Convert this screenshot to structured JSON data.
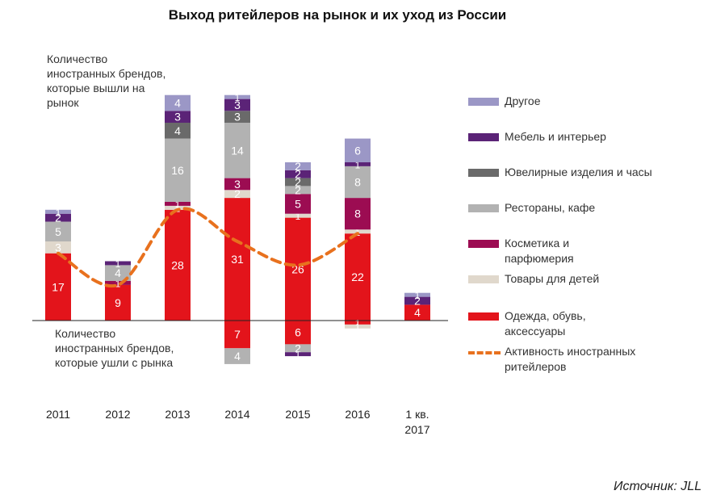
{
  "title": "Выход ритейлеров на рынок и их уход из России",
  "notes": {
    "entry": "Количество иностранных брендов, которые вышли на рынок",
    "exit": "Количество иностранных брендов, которые ушли с рынка"
  },
  "source": "Источник: JLL",
  "legend": [
    {
      "label": "Другое",
      "color": "#9B97C6",
      "kind": "box"
    },
    {
      "label": "Мебель и интерьер",
      "color": "#5B2377",
      "kind": "box"
    },
    {
      "label": "Ювелирные изделия и часы",
      "color": "#6A6A6A",
      "kind": "box"
    },
    {
      "label": "Рестораны, кафе",
      "color": "#B2B2B2",
      "kind": "box"
    },
    {
      "label": "Косметика и парфюмерия",
      "color": "#9C0C52",
      "kind": "box"
    },
    {
      "label": "Товары для детей",
      "color": "#E0D8CC",
      "kind": "box"
    },
    {
      "label": "Одежда, обувь, аксессуары",
      "color": "#E3141B",
      "kind": "box"
    },
    {
      "label": "Активность иностранных ритейлеров",
      "color": "#E8711E",
      "kind": "line"
    }
  ],
  "chart_data": {
    "type": "bar",
    "stacked": true,
    "title": "Выход ритейлеров на рынок и их уход из России",
    "categories": [
      "2011",
      "2012",
      "2013",
      "2014",
      "2015",
      "2016",
      "1 кв. 2017"
    ],
    "series_entries": [
      {
        "name": "Одежда, обувь, аксессуары",
        "color": "#E3141B",
        "values": [
          17,
          9,
          28,
          31,
          26,
          22,
          4
        ]
      },
      {
        "name": "Товары для детей",
        "color": "#E0D8CC",
        "values": [
          3,
          0,
          1,
          2,
          1,
          1,
          0
        ]
      },
      {
        "name": "Косметика и парфюмерия",
        "color": "#9C0C52",
        "values": [
          0,
          1,
          1,
          3,
          5,
          8,
          0
        ]
      },
      {
        "name": "Рестораны, кафе",
        "color": "#B2B2B2",
        "values": [
          5,
          4,
          16,
          14,
          2,
          8,
          0
        ]
      },
      {
        "name": "Ювелирные изделия и часы",
        "color": "#6A6A6A",
        "values": [
          0,
          0,
          4,
          3,
          2,
          0,
          0
        ]
      },
      {
        "name": "Мебель и интерьер",
        "color": "#5B2377",
        "values": [
          2,
          1,
          3,
          3,
          2,
          1,
          2
        ]
      },
      {
        "name": "Другое",
        "color": "#9B97C6",
        "values": [
          1,
          0,
          4,
          1,
          2,
          6,
          1
        ]
      }
    ],
    "series_exits": [
      {
        "name": "Одежда, обувь, аксессуары",
        "color": "#E3141B",
        "values": [
          0,
          0,
          0,
          7,
          6,
          1,
          0
        ]
      },
      {
        "name": "Товары для детей",
        "color": "#E0D8CC",
        "values": [
          0,
          0,
          0,
          0,
          0,
          1,
          0
        ]
      },
      {
        "name": "Рестораны, кафе",
        "color": "#B2B2B2",
        "values": [
          0,
          0,
          0,
          4,
          2,
          0,
          0
        ]
      },
      {
        "name": "Мебель и интерьер",
        "color": "#5B2377",
        "values": [
          0,
          0,
          0,
          0,
          1,
          0,
          0
        ]
      }
    ],
    "line": {
      "name": "Активность иностранных ритейлеров",
      "color": "#E8711E",
      "values": [
        17,
        9,
        28,
        20,
        14,
        22
      ]
    },
    "ylim": [
      -11,
      57
    ]
  }
}
